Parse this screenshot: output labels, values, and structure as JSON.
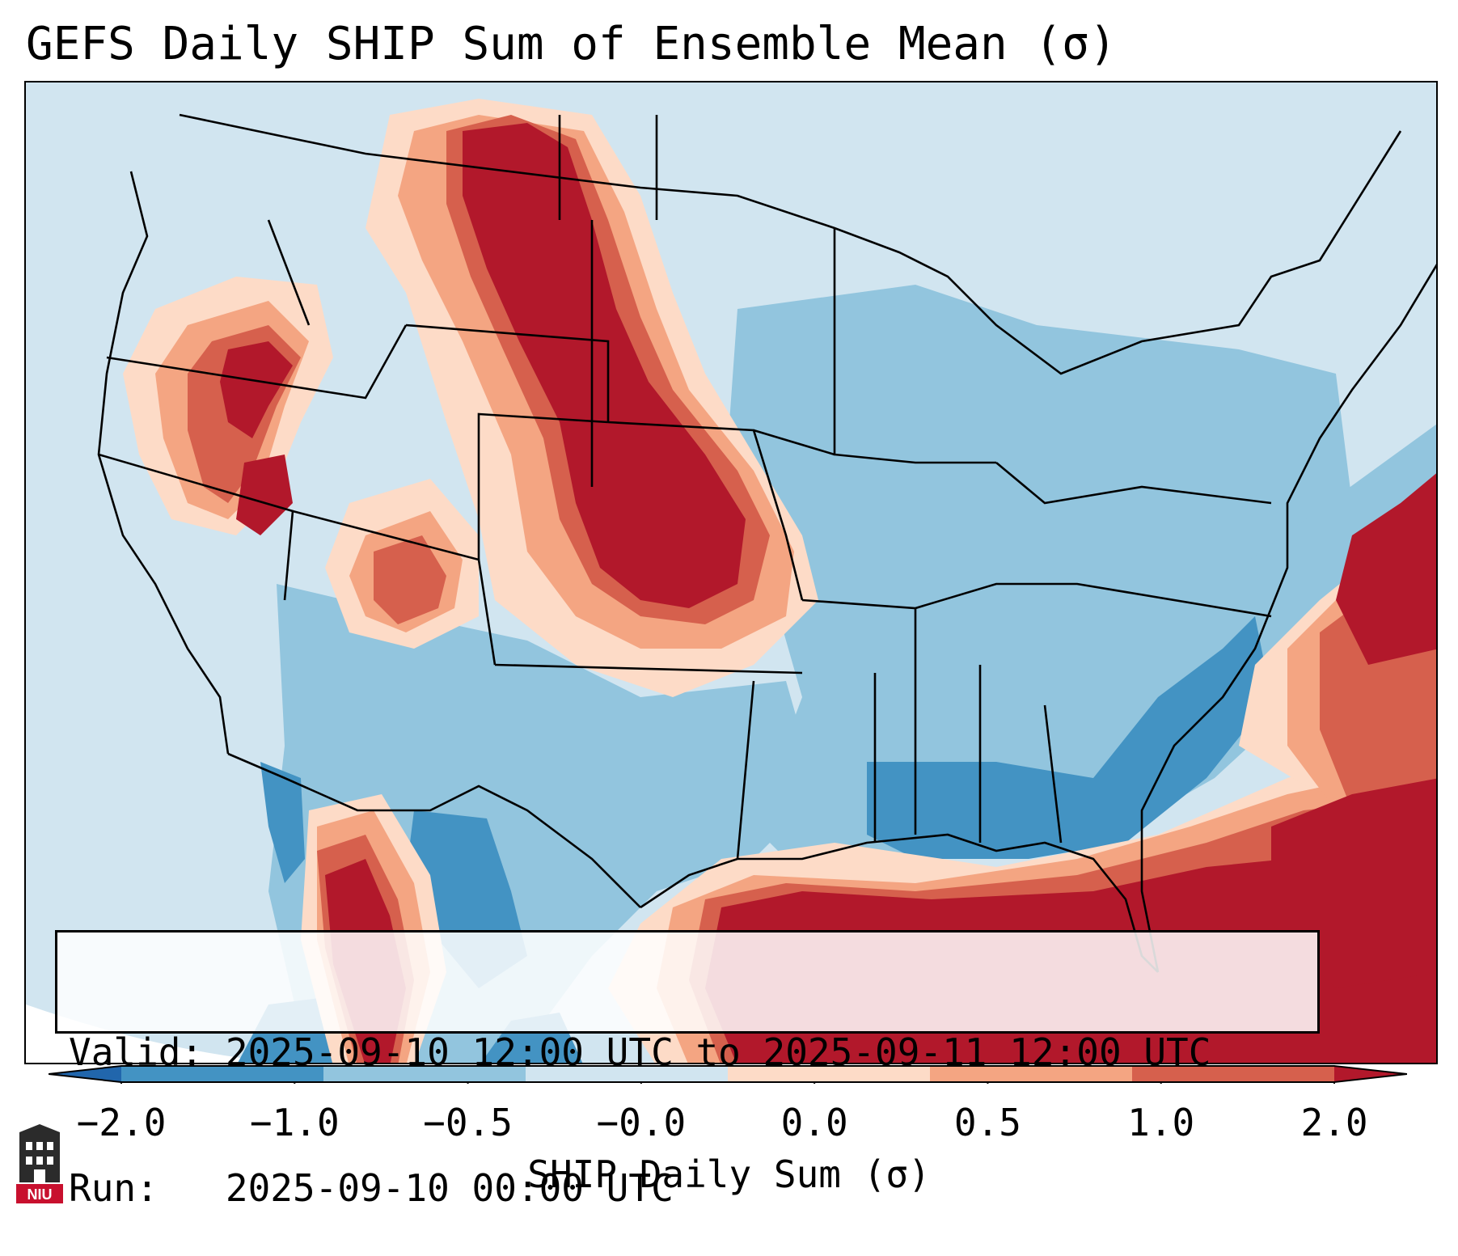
{
  "title": "GEFS Daily SHIP Sum of Ensemble Mean (σ)",
  "info": {
    "valid_label": "Valid:",
    "valid_value": "2025-09-10 12:00 UTC to 2025-09-11 12:00 UTC",
    "run_label": "Run:",
    "run_value": "2025-09-10 00:00 UTC"
  },
  "colorbar": {
    "label": "SHIP Daily Sum (σ)",
    "ticks": [
      "−2.0",
      "−1.0",
      "−0.5",
      "−0.0",
      "0.0",
      "0.5",
      "1.0",
      "2.0"
    ],
    "colors": [
      "#2166ac",
      "#4393c3",
      "#92c5de",
      "#d1e5f0",
      "#fddbc7",
      "#f4a582",
      "#d6604d",
      "#b2182b"
    ]
  },
  "logo": {
    "text": "NIU"
  },
  "map_data": {
    "projection": "Lambert Conformal",
    "region": "Contiguous United States",
    "background_color": "#d1e5f0",
    "field": "SHIP daily sum, ensemble mean (σ)",
    "features": [
      {
        "name": "Northern Plains maximum",
        "value_sigma": 2.0,
        "color": "#b2182b"
      },
      {
        "name": "Gulf of Mexico maximum",
        "value_sigma": 2.0,
        "color": "#b2182b"
      },
      {
        "name": "Western Atlantic maximum",
        "value_sigma": 2.0,
        "color": "#b2182b"
      },
      {
        "name": "Mexican Sierra Madre maximum",
        "value_sigma": 2.0,
        "color": "#b2182b"
      },
      {
        "name": "Pacific Northwest / Great Basin maxima",
        "value_sigma": 1.0,
        "color": "#d6604d"
      },
      {
        "name": "Southeast US minimum",
        "value_sigma": -1.0,
        "color": "#4393c3"
      },
      {
        "name": "Eastern US below normal",
        "value_sigma": -0.5,
        "color": "#92c5de"
      }
    ]
  }
}
